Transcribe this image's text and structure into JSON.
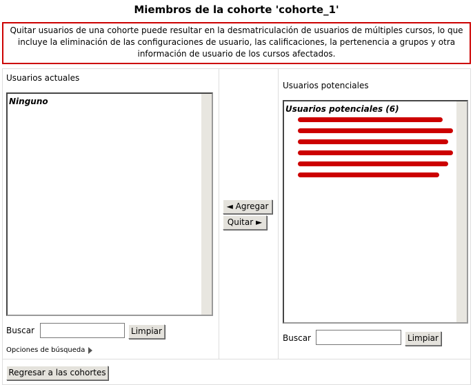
{
  "header": {
    "title": "Miembros de la cohorte 'cohorte_1'"
  },
  "notice": {
    "text": "Quitar usuarios de una cohorte puede resultar en la desmatriculación de usuarios de múltiples cursos, lo que incluye la eliminación de las configuraciones de usuario, las calificaciones, la pertenencia a grupos y otra información de usuario de los cursos afectados."
  },
  "left": {
    "label": "Usuarios actuales",
    "empty": "Ninguno",
    "search_label": "Buscar",
    "clear_button": "Limpiar",
    "search_options": "Opciones de búsqueda"
  },
  "center": {
    "add_button": "◄ Agregar",
    "remove_button": "Quitar ►"
  },
  "right": {
    "label": "Usuarios potenciales",
    "group": "Usuarios potenciales (6)",
    "search_label": "Buscar",
    "clear_button": "Limpiar"
  },
  "footer": {
    "back_button": "Regresar a las cohortes"
  }
}
